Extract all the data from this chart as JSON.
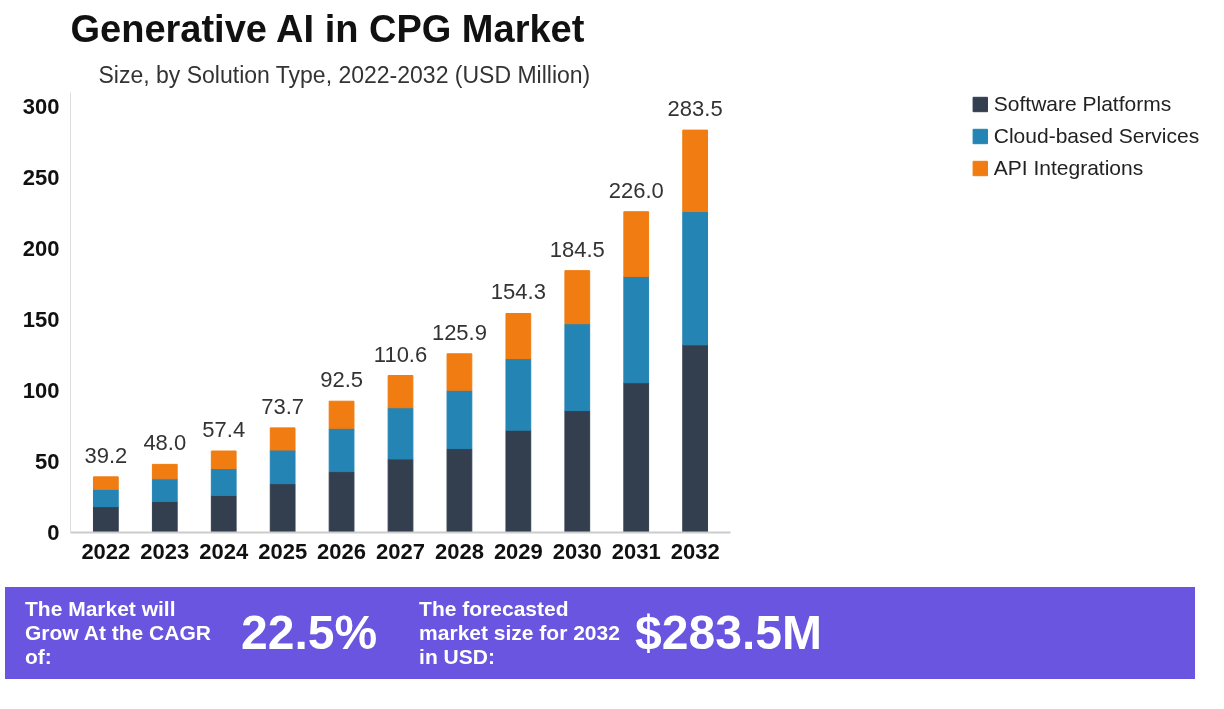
{
  "chart_data": {
    "type": "bar",
    "stacked": true,
    "title": "Generative AI in CPG Market",
    "subtitle": "Size, by Solution Type, 2022-2032 (USD Million)",
    "categories": [
      "2022",
      "2023",
      "2024",
      "2025",
      "2026",
      "2027",
      "2028",
      "2029",
      "2030",
      "2031",
      "2032"
    ],
    "series": [
      {
        "name": "Software Platforms",
        "color": "#333f4f",
        "values": [
          18.2,
          21.8,
          26.1,
          34.4,
          42.9,
          51.8,
          59.1,
          72.1,
          85.9,
          105.5,
          132.2
        ]
      },
      {
        "name": "Cloud-based Services",
        "color": "#2484b4",
        "values": [
          12.2,
          16.0,
          18.9,
          23.7,
          30.5,
          36.1,
          41.1,
          50.4,
          61.2,
          74.9,
          93.9
        ]
      },
      {
        "name": "API Integrations",
        "color": "#f07c12",
        "values": [
          8.8,
          10.2,
          12.4,
          15.6,
          19.1,
          22.7,
          25.7,
          31.8,
          37.4,
          45.6,
          57.4
        ]
      }
    ],
    "totals": [
      "39.2",
      "48.0",
      "57.4",
      "73.7",
      "92.5",
      "110.6",
      "125.9",
      "154.3",
      "184.5",
      "226.0",
      "283.5"
    ],
    "ylim": [
      0,
      310
    ],
    "yticks": [
      0,
      50,
      100,
      150,
      200,
      250,
      300
    ],
    "grid": false,
    "legend": "top right",
    "annotations": [
      "The Market will Grow At the CAGR of:",
      "22.5%",
      "The forecasted market size for 2032 in USD:",
      "$283.5M"
    ]
  }
}
